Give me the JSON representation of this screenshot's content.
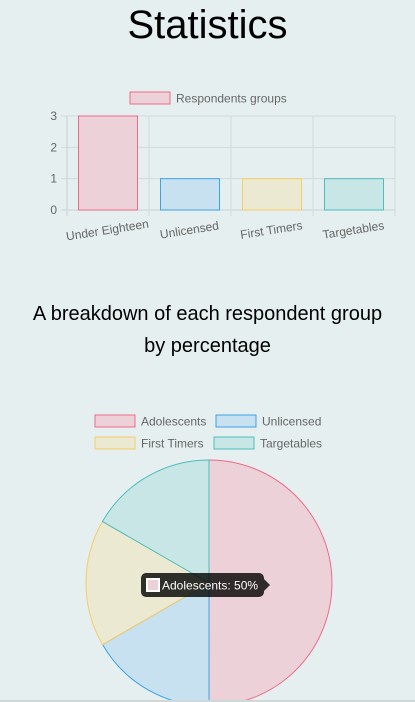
{
  "page": {
    "title": "Statistics",
    "breakdown_heading": "A breakdown of each respondent group by percentage"
  },
  "chart_data": [
    {
      "type": "bar",
      "categories": [
        "Under Eighteen",
        "Unlicensed",
        "First Timers",
        "Targetables"
      ],
      "series": [
        {
          "name": "Respondents groups",
          "values": [
            3,
            1,
            1,
            1
          ]
        }
      ],
      "title": "",
      "xlabel": "",
      "ylabel": "",
      "ylim": [
        0,
        3
      ],
      "yticks": [
        "3",
        "2",
        "1",
        "0"
      ],
      "grid": true,
      "legend": "top",
      "colors": [
        {
          "fill": "#edd1d8",
          "stroke": "#ee6b88"
        },
        {
          "fill": "#c7e1f1",
          "stroke": "#3ea2e3"
        },
        {
          "fill": "#ece9d3",
          "stroke": "#f5cd66"
        },
        {
          "fill": "#c8e6e6",
          "stroke": "#4dbdbd"
        }
      ]
    },
    {
      "type": "pie",
      "categories": [
        "Adolescents",
        "Unlicensed",
        "First Timers",
        "Targetables"
      ],
      "values": [
        50,
        16.67,
        16.67,
        16.67
      ],
      "legend": "top",
      "colors": [
        {
          "fill": "#edd1d8",
          "stroke": "#ee6b88"
        },
        {
          "fill": "#c7e1f1",
          "stroke": "#3ea2e3"
        },
        {
          "fill": "#ece9d3",
          "stroke": "#f5cd66"
        },
        {
          "fill": "#c8e6e6",
          "stroke": "#4dbdbd"
        }
      ],
      "tooltip": {
        "label": "Adolescents: 50%"
      }
    }
  ]
}
